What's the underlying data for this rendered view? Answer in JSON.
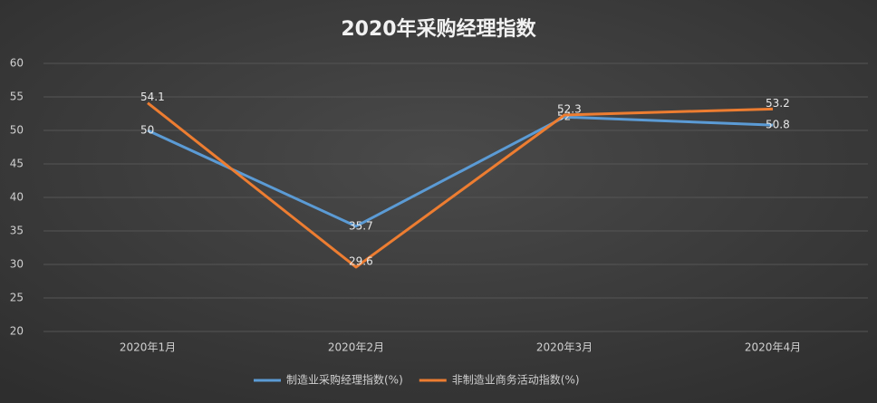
{
  "chart_data": {
    "type": "line",
    "title": "2020年采购经理指数",
    "categories": [
      "2020年1月",
      "2020年2月",
      "2020年3月",
      "2020年4月"
    ],
    "series": [
      {
        "name": "制造业采购经理指数(%)",
        "color": "#5b9bd5",
        "values": [
          50,
          35.7,
          52,
          50.8
        ]
      },
      {
        "name": "非制造业商务活动指数(%)",
        "color": "#ed7d31",
        "values": [
          54.1,
          29.6,
          52.3,
          53.2
        ]
      }
    ],
    "ylim": [
      20,
      60
    ],
    "yticks": [
      20,
      25,
      30,
      35,
      40,
      45,
      50,
      55,
      60
    ],
    "grid": true,
    "legend": "bottom"
  }
}
